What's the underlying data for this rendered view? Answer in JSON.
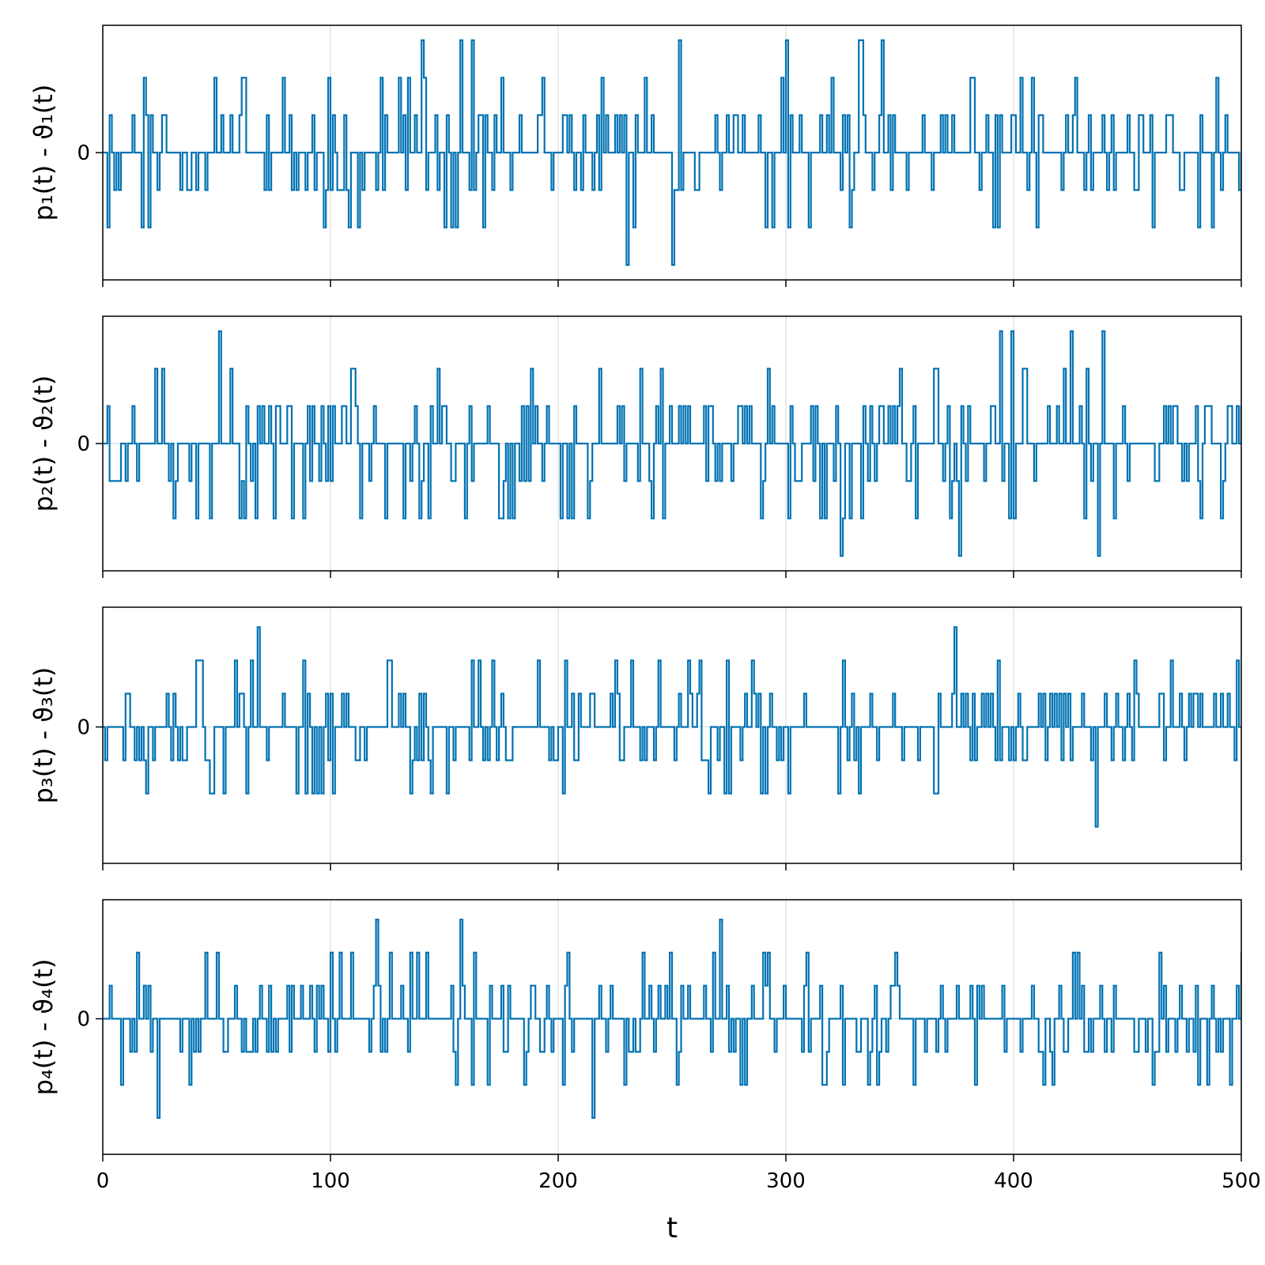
{
  "chart_data": {
    "type": "line",
    "layout": "4 stacked panels sharing x-axis",
    "xlabel": "t",
    "xlim": [
      0,
      500
    ],
    "xticks": [
      0,
      100,
      200,
      300,
      400,
      500
    ],
    "xtick_labels": [
      "0",
      "100",
      "200",
      "300",
      "400",
      "500"
    ],
    "grid": true,
    "color": "#0072b2",
    "step_unit": 1,
    "panels": [
      {
        "ylabel": "p₁(t) - ϑ₁(t)",
        "yticks": [
          0
        ],
        "ytick_labels": [
          "0"
        ],
        "ylim": [
          -3.4,
          3.4
        ],
        "levels": [
          -3,
          -2,
          -1,
          0,
          1,
          2,
          3
        ],
        "seed": 11,
        "weights": [
          0.012,
          0.07,
          0.2,
          0.42,
          0.2,
          0.086,
          0.012
        ]
      },
      {
        "ylabel": "p₂(t) - ϑ₂(t)",
        "yticks": [
          0
        ],
        "ytick_labels": [
          "0"
        ],
        "ylim": [
          -3.4,
          3.4
        ],
        "levels": [
          -3,
          -2,
          -1,
          0,
          1,
          2,
          3
        ],
        "seed": 23,
        "weights": [
          0.01,
          0.07,
          0.2,
          0.42,
          0.21,
          0.08,
          0.01
        ]
      },
      {
        "ylabel": "p₃(t) - ϑ₃(t)",
        "yticks": [
          0
        ],
        "ytick_labels": [
          "0"
        ],
        "ylim": [
          -4.1,
          3.6
        ],
        "levels": [
          -4,
          -3,
          -2,
          -1,
          0,
          1,
          2,
          3
        ],
        "seed": 37,
        "weights": [
          0.002,
          0.008,
          0.07,
          0.2,
          0.42,
          0.21,
          0.08,
          0.01
        ]
      },
      {
        "ylabel": "p₄(t) - ϑ₄(t)",
        "yticks": [
          0
        ],
        "ytick_labels": [
          "0"
        ],
        "ylim": [
          -4.1,
          3.6
        ],
        "levels": [
          -4,
          -3,
          -2,
          -1,
          0,
          1,
          2,
          3
        ],
        "seed": 53,
        "weights": [
          0.002,
          0.008,
          0.07,
          0.2,
          0.42,
          0.21,
          0.08,
          0.01
        ]
      }
    ]
  }
}
